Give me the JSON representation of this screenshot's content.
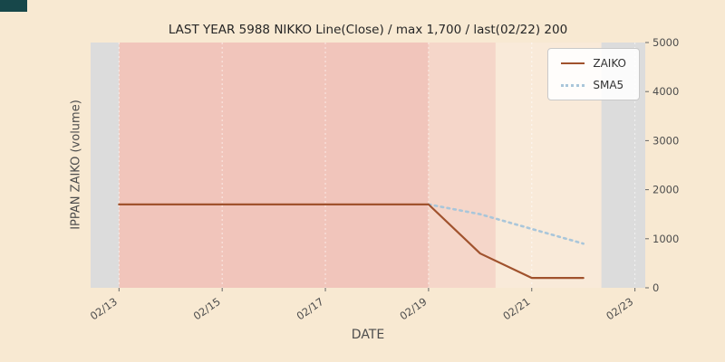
{
  "title": "LAST YEAR 5988 NIKKO Line(Close) / max 1,700 / last(02/22) 200",
  "xlabel": "DATE",
  "ylabel": "IPPAN ZAIKO (volume)",
  "colors": {
    "figure_background": "#f8e9d2",
    "corner_marker": "#17474a",
    "tick_color": "#666666",
    "tick_label_color": "#4d4d4d",
    "zaiko_line": "#a0522d",
    "sma5_line": "#a9c6da",
    "band_gray": "#dcdcdc",
    "band_pink_dark": "#f1c5bb",
    "band_pink_mid": "#f5d6c9",
    "band_cream": "#f9ead9"
  },
  "legend": {
    "items": [
      {
        "label": "ZAIKO",
        "style": "solid",
        "color": "#a0522d"
      },
      {
        "label": "SMA5",
        "style": "dotted",
        "color": "#a9c6da"
      }
    ]
  },
  "chart_data": {
    "type": "line",
    "x_days": [
      13,
      14,
      15,
      16,
      17,
      18,
      19,
      20,
      21,
      22
    ],
    "x_tick_days": [
      13,
      15,
      17,
      19,
      21,
      23
    ],
    "x_tick_labels": [
      "02/13",
      "02/15",
      "02/17",
      "02/19",
      "02/21",
      "02/23"
    ],
    "series": [
      {
        "name": "ZAIKO",
        "color": "#a0522d",
        "style": "solid",
        "values": [
          1700,
          1700,
          1700,
          1700,
          1700,
          1700,
          1700,
          700,
          200,
          200
        ]
      },
      {
        "name": "SMA5",
        "color": "#a9c6da",
        "style": "dotted",
        "values": [
          null,
          null,
          null,
          null,
          null,
          null,
          1700,
          1500,
          1200,
          900
        ]
      }
    ],
    "ylim": [
      0,
      5000
    ],
    "y_ticks": [
      0,
      1000,
      2000,
      3000,
      4000,
      5000
    ],
    "xlim_days": [
      12.45,
      23.2
    ],
    "max_value": 1700,
    "last_date": "02/22",
    "last_value": 200,
    "bands": [
      {
        "from": 12.45,
        "to": 13.0,
        "color": "#dcdcdc"
      },
      {
        "from": 13.0,
        "to": 19.0,
        "color": "#f1c5bb"
      },
      {
        "from": 19.0,
        "to": 20.3,
        "color": "#f5d6c9"
      },
      {
        "from": 20.3,
        "to": 22.35,
        "color": "#f9ead9"
      },
      {
        "from": 22.35,
        "to": 23.2,
        "color": "#dcdcdc"
      }
    ]
  }
}
